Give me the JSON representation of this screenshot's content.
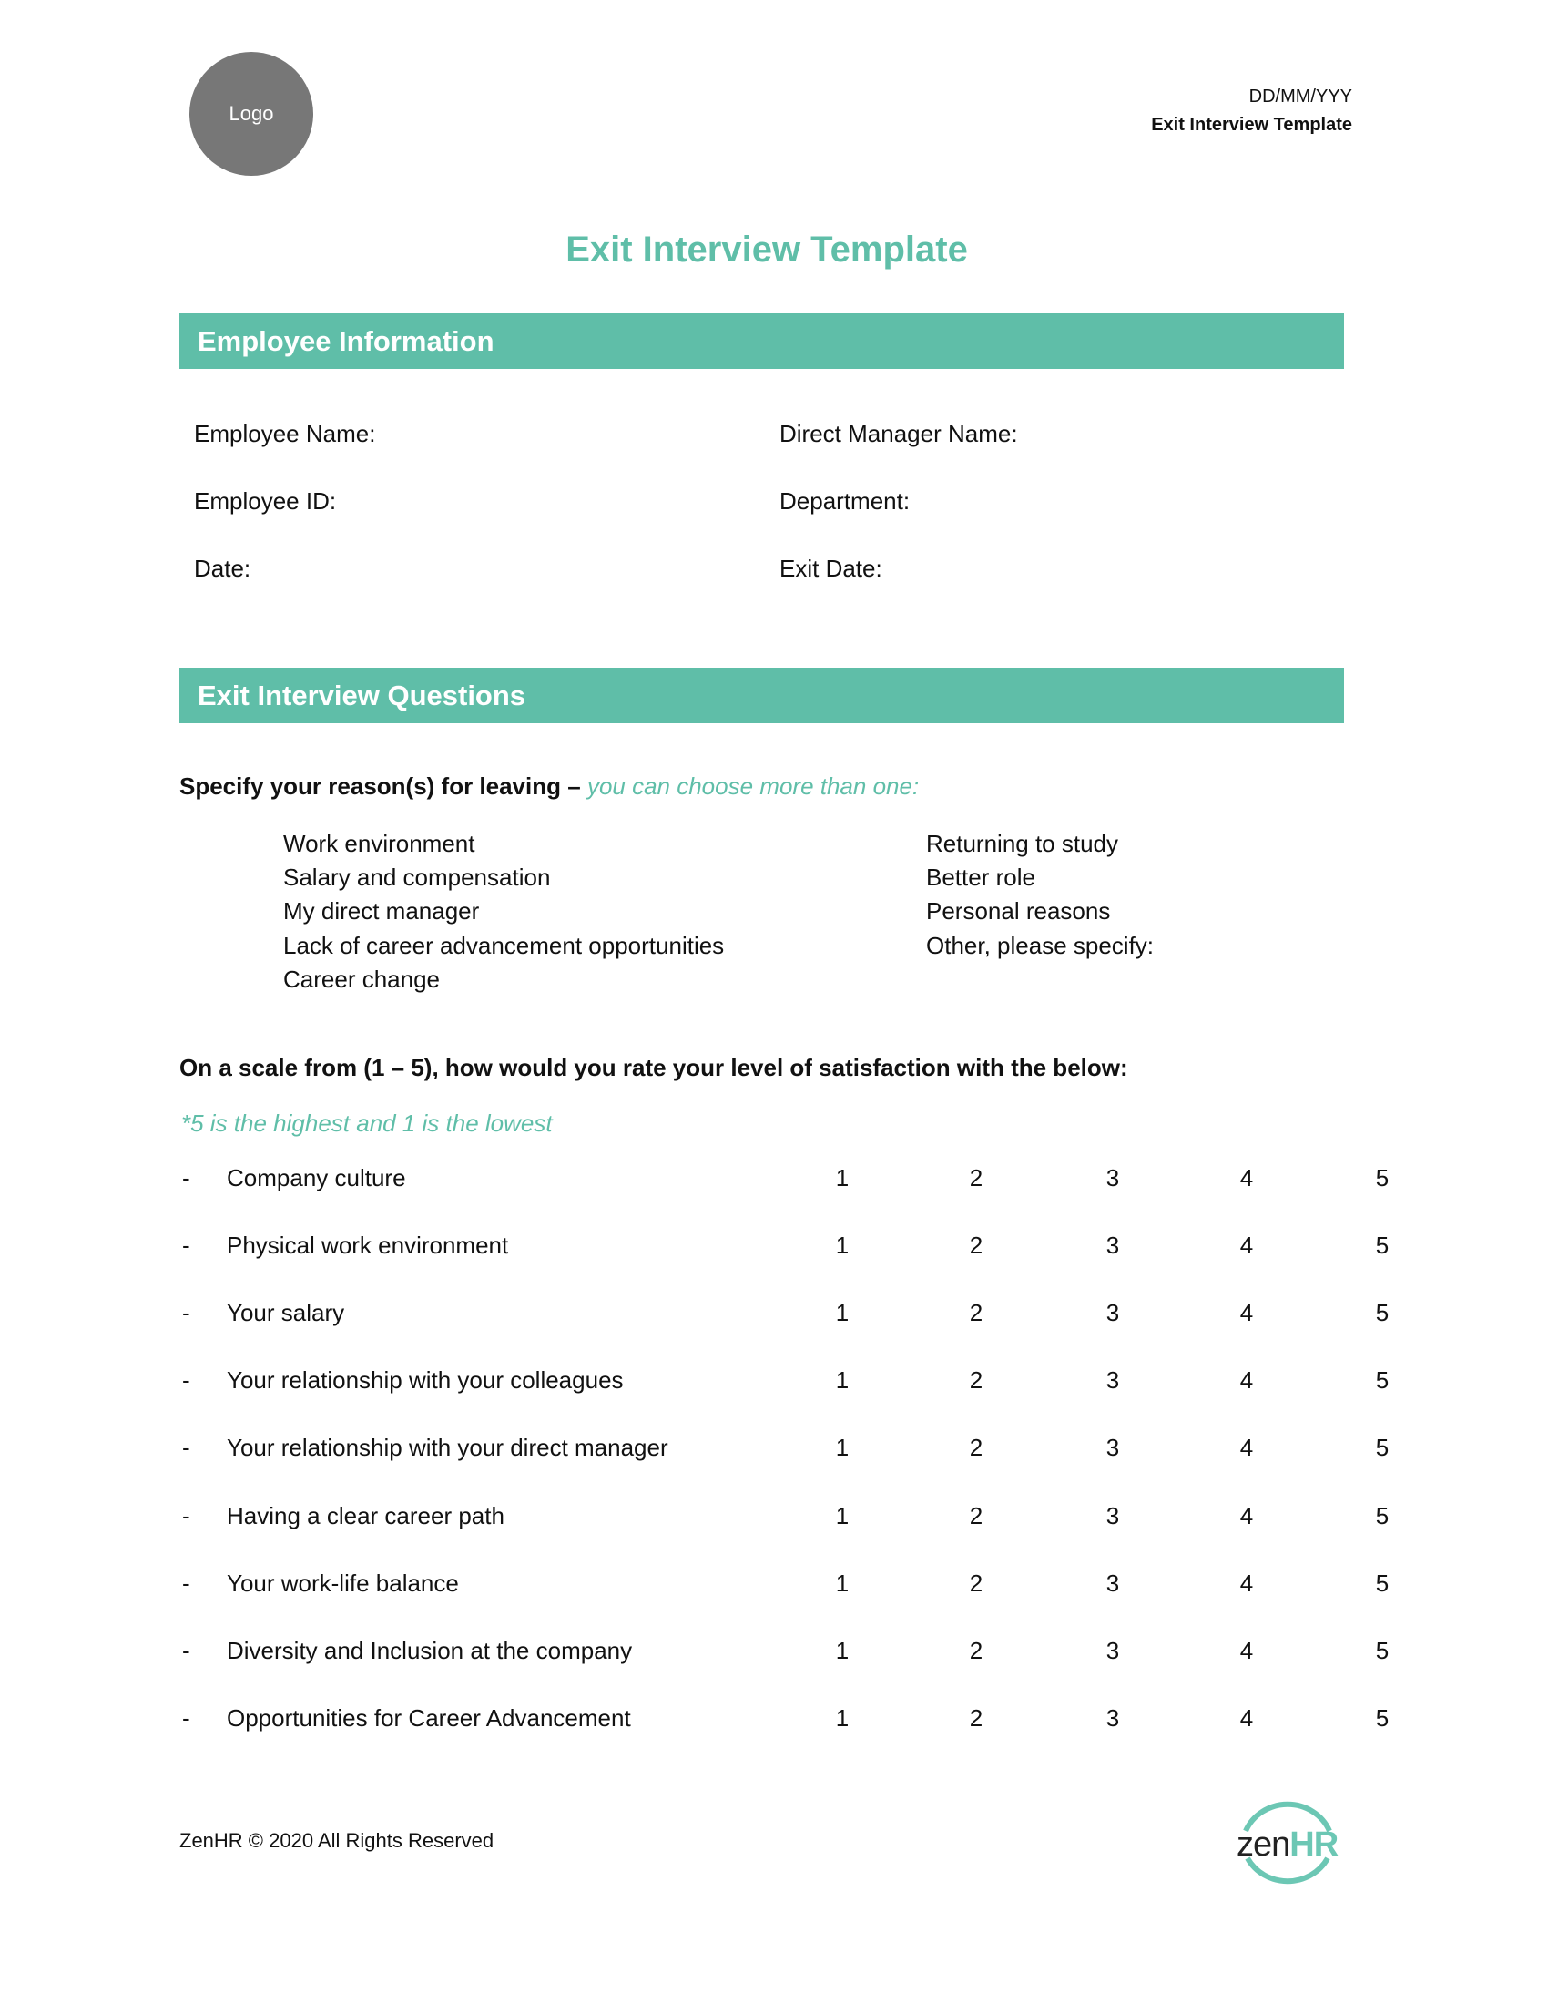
{
  "header": {
    "logo_text": "Logo",
    "date": "DD/MM/YYY",
    "doc_name": "Exit Interview Template"
  },
  "title": "Exit Interview Template",
  "employee_info": {
    "heading": "Employee Information",
    "fields_left": [
      "Employee Name:",
      "Employee ID:",
      "Date:"
    ],
    "fields_right": [
      "Direct Manager Name:",
      "Department:",
      "Exit Date:"
    ]
  },
  "questions": {
    "heading": "Exit Interview Questions",
    "reasons_prompt": "Specify your reason(s) for leaving –",
    "reasons_hint": "you can choose more than one:",
    "reasons_left": [
      "Work environment",
      "Salary and compensation",
      "My direct manager",
      "Lack of career advancement opportunities",
      "Career change"
    ],
    "reasons_right": [
      "Returning to study",
      "Better role",
      "Personal reasons",
      "Other, please specify:"
    ],
    "scale_prompt": "On a scale from (1 – 5), how would you rate your level of satisfaction with the below:",
    "scale_note": "*5 is the highest and 1 is the lowest",
    "scale_values": [
      "1",
      "2",
      "3",
      "4",
      "5"
    ],
    "items": [
      "Company culture",
      "Physical work environment",
      "Your salary",
      "Your relationship with your colleagues",
      "Your relationship with your direct manager",
      "Having a clear career path",
      "Your work-life balance",
      "Diversity and Inclusion at the company",
      "Opportunities for Career Advancement"
    ],
    "bullet": "-"
  },
  "footer": {
    "copyright": "ZenHR © 2020 All Rights Reserved",
    "brand_logo": {
      "zen": "zen",
      "hr": "HR"
    }
  },
  "colors": {
    "accent": "#5fbea8",
    "logo_gray": "#777777"
  }
}
